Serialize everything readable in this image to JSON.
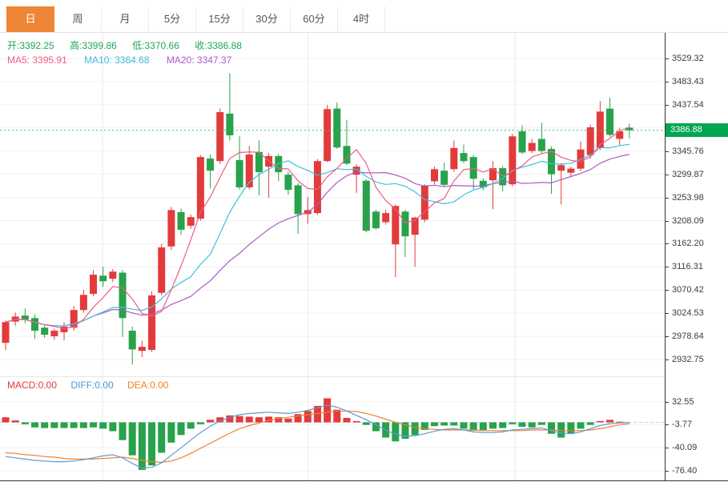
{
  "tabs": {
    "items": [
      {
        "key": "day",
        "label": "日",
        "active": true
      },
      {
        "key": "week",
        "label": "周",
        "active": false
      },
      {
        "key": "month",
        "label": "月",
        "active": false
      },
      {
        "key": "5min",
        "label": "5分",
        "active": false
      },
      {
        "key": "15min",
        "label": "15分",
        "active": false
      },
      {
        "key": "30min",
        "label": "30分",
        "active": false
      },
      {
        "key": "60min",
        "label": "60分",
        "active": false
      },
      {
        "key": "4hour",
        "label": "4时",
        "active": false
      }
    ]
  },
  "quote": {
    "items": [
      {
        "label": "开:",
        "value": "3392.25"
      },
      {
        "label": "高:",
        "value": "3399.86"
      },
      {
        "label": "低:",
        "value": "3370.66"
      },
      {
        "label": "收:",
        "value": "3386.88"
      }
    ]
  },
  "ma_header": {
    "items": [
      {
        "label": "MA5:",
        "value": "3395.91"
      },
      {
        "label": "MA10:",
        "value": "3364.68"
      },
      {
        "label": "MA20:",
        "value": "3347.37"
      }
    ]
  },
  "macd_header": {
    "items": [
      {
        "label": "MACD:",
        "value": "0.00"
      },
      {
        "label": "DIFF:",
        "value": "0.00"
      },
      {
        "label": "DEA:",
        "value": "0.00"
      }
    ]
  },
  "y_axis": {
    "price_tag": "3386.88",
    "ticks": [
      "3529.32",
      "3483.43",
      "3437.54",
      "3345.76",
      "3299.87",
      "3253.98",
      "3208.09",
      "3162.20",
      "3116.31",
      "3070.42",
      "3024.53",
      "2978.64",
      "2932.75"
    ]
  },
  "macd_axis": {
    "ticks": [
      "32.55",
      "-3.77",
      "-40.09",
      "-76.40"
    ]
  },
  "colors": {
    "up": "#e23b3c",
    "down": "#28a24b",
    "tag_bg": "#00a651",
    "tab_active": "#ef8536",
    "ma5": "#ec5d85",
    "ma10": "#3fc1dd",
    "ma20": "#aa5cc3",
    "dif": "#5b9bd5",
    "dea": "#f08030",
    "price_line": "#3db56b",
    "zero_line": "#b9d4ea",
    "grid": "#f0f0f0",
    "vgrid": "#e9e9e9",
    "quote_text": "#1fa75a"
  },
  "chart_data": [
    {
      "type": "candlestick",
      "timeframe": "日",
      "current_price": 3386.88,
      "y_axis_top": 3529.32,
      "y_axis_bottom": 2932.75,
      "y_axis_step": 45.89,
      "ma_periods": [
        5,
        10,
        20
      ],
      "ma_last_values": {
        "ma5": 3395.91,
        "ma10": 3364.68,
        "ma20": 3347.37
      },
      "candles_ohlc": [
        [
          2966,
          3010,
          2952,
          3007
        ],
        [
          3008,
          3026,
          3000,
          3018
        ],
        [
          3020,
          3034,
          3005,
          3012
        ],
        [
          3015,
          3022,
          2974,
          2990
        ],
        [
          2996,
          3000,
          2976,
          2982
        ],
        [
          2979,
          2994,
          2972,
          2990
        ],
        [
          2987,
          3007,
          2971,
          2998
        ],
        [
          2996,
          3039,
          2990,
          3031
        ],
        [
          3031,
          3071,
          3026,
          3061
        ],
        [
          3063,
          3110,
          3058,
          3101
        ],
        [
          3099,
          3117,
          3077,
          3088
        ],
        [
          3093,
          3112,
          3086,
          3107
        ],
        [
          3105,
          3110,
          2978,
          3015
        ],
        [
          2990,
          2998,
          2923,
          2953
        ],
        [
          2950,
          2970,
          2938,
          2958
        ],
        [
          2952,
          3068,
          2948,
          3060
        ],
        [
          3065,
          3162,
          3060,
          3155
        ],
        [
          3157,
          3235,
          3150,
          3229
        ],
        [
          3225,
          3232,
          3180,
          3190
        ],
        [
          3198,
          3220,
          3192,
          3215
        ],
        [
          3212,
          3338,
          3208,
          3334
        ],
        [
          3331,
          3339,
          3272,
          3307
        ],
        [
          3326,
          3430,
          3320,
          3423
        ],
        [
          3420,
          3500,
          3367,
          3377
        ],
        [
          3328,
          3375,
          3270,
          3274
        ],
        [
          3274,
          3356,
          3270,
          3339
        ],
        [
          3344,
          3367,
          3258,
          3304
        ],
        [
          3315,
          3342,
          3253,
          3336
        ],
        [
          3336,
          3340,
          3286,
          3304
        ],
        [
          3299,
          3305,
          3260,
          3269
        ],
        [
          3278,
          3282,
          3182,
          3221
        ],
        [
          3221,
          3255,
          3202,
          3229
        ],
        [
          3223,
          3330,
          3220,
          3326
        ],
        [
          3326,
          3437,
          3324,
          3429
        ],
        [
          3430,
          3442,
          3350,
          3353
        ],
        [
          3356,
          3408,
          3318,
          3321
        ],
        [
          3299,
          3320,
          3263,
          3315
        ],
        [
          3287,
          3290,
          3185,
          3188
        ],
        [
          3226,
          3230,
          3190,
          3193
        ],
        [
          3205,
          3230,
          3200,
          3223
        ],
        [
          3161,
          3240,
          3096,
          3237
        ],
        [
          3226,
          3230,
          3136,
          3177
        ],
        [
          3180,
          3216,
          3117,
          3214
        ],
        [
          3210,
          3280,
          3205,
          3278
        ],
        [
          3286,
          3315,
          3280,
          3310
        ],
        [
          3307,
          3323,
          3275,
          3279
        ],
        [
          3310,
          3367,
          3305,
          3352
        ],
        [
          3342,
          3359,
          3322,
          3326
        ],
        [
          3334,
          3338,
          3270,
          3291
        ],
        [
          3287,
          3292,
          3268,
          3274
        ],
        [
          3288,
          3326,
          3231,
          3312
        ],
        [
          3312,
          3316,
          3266,
          3278
        ],
        [
          3280,
          3380,
          3276,
          3375
        ],
        [
          3385,
          3397,
          3340,
          3343
        ],
        [
          3346,
          3370,
          3342,
          3362
        ],
        [
          3370,
          3402,
          3342,
          3346
        ],
        [
          3350,
          3355,
          3261,
          3300
        ],
        [
          3307,
          3322,
          3240,
          3318
        ],
        [
          3303,
          3315,
          3296,
          3311
        ],
        [
          3311,
          3365,
          3306,
          3349
        ],
        [
          3338,
          3398,
          3331,
          3393
        ],
        [
          3352,
          3445,
          3348,
          3424
        ],
        [
          3430,
          3452,
          3374,
          3378
        ],
        [
          3370,
          3392,
          3358,
          3385
        ],
        [
          3392.25,
          3399.86,
          3370.66,
          3386.88
        ]
      ]
    },
    {
      "type": "bar",
      "name": "MACD",
      "y_axis_ticks": [
        32.55,
        -3.77,
        -40.09,
        -76.4
      ],
      "macd_values": {
        "macd": 0.0,
        "diff": 0.0,
        "dea": 0.0
      },
      "histogram": [
        8,
        3,
        -3,
        -8,
        -9,
        -9,
        -9,
        -9,
        -9,
        -8,
        -10,
        -14,
        -28,
        -52,
        -75,
        -68,
        -48,
        -32,
        -20,
        -10,
        -3,
        4,
        8,
        11,
        10,
        9,
        8,
        9,
        8,
        6,
        13,
        18,
        26,
        38,
        20,
        7,
        2,
        -4,
        -14,
        -24,
        -30,
        -26,
        -20,
        -12,
        -6,
        -5,
        -5,
        -10,
        -13,
        -12,
        -10,
        -9,
        -3,
        -7,
        -8,
        -4,
        -18,
        -24,
        -18,
        -10,
        -4,
        2,
        4,
        1,
        0
      ],
      "dif": [
        -54,
        -56,
        -58,
        -60,
        -61,
        -62,
        -62,
        -61,
        -59,
        -56,
        -53,
        -51,
        -56,
        -65,
        -72,
        -71,
        -64,
        -52,
        -40,
        -28,
        -16,
        -6,
        2,
        8,
        12,
        14,
        15,
        16,
        15,
        14,
        16,
        19,
        23,
        27,
        24,
        18,
        11,
        4,
        -4,
        -12,
        -19,
        -22,
        -21,
        -18,
        -14,
        -11,
        -10,
        -12,
        -15,
        -16,
        -16,
        -15,
        -12,
        -11,
        -10,
        -9,
        -13,
        -17,
        -18,
        -15,
        -10,
        -5,
        -2,
        -1,
        0
      ],
      "dea": [
        -48,
        -49,
        -51,
        -52,
        -54,
        -55,
        -57,
        -58,
        -58,
        -58,
        -57,
        -56,
        -55,
        -57,
        -60,
        -62,
        -63,
        -61,
        -56,
        -49,
        -41,
        -33,
        -25,
        -17,
        -10,
        -5,
        -1,
        3,
        6,
        8,
        10,
        12,
        14,
        16,
        18,
        18,
        17,
        14,
        10,
        5,
        0,
        -4,
        -8,
        -10,
        -11,
        -12,
        -12,
        -12,
        -12,
        -13,
        -13,
        -13,
        -13,
        -13,
        -12,
        -12,
        -12,
        -13,
        -13,
        -13,
        -12,
        -10,
        -7,
        -4,
        -2
      ]
    }
  ]
}
